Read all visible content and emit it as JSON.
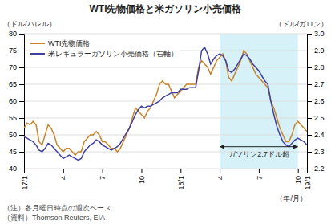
{
  "chart_data": {
    "type": "line",
    "title": "WTI先物価格と米ガソリン小売価格",
    "ylabel": "（ドル/バレル）",
    "y2label": "（ドル/ガロン）",
    "xlabel": "（年/月）",
    "notes": [
      "（注）各月曜日時点の週次ベース",
      "（資料）Thomson Reuters, EIA"
    ],
    "categories": [
      "17/1",
      null,
      null,
      null,
      null,
      null,
      null,
      null,
      null,
      null,
      null,
      null,
      null,
      "4",
      null,
      null,
      null,
      null,
      null,
      null,
      null,
      null,
      null,
      null,
      null,
      null,
      "7",
      null,
      null,
      null,
      null,
      null,
      null,
      null,
      null,
      null,
      null,
      null,
      null,
      "10",
      null,
      null,
      null,
      null,
      null,
      null,
      null,
      null,
      null,
      null,
      null,
      null,
      "18/1",
      null,
      null,
      null,
      null,
      null,
      null,
      null,
      null,
      null,
      null,
      null,
      null,
      "4",
      null,
      null,
      null,
      null,
      null,
      null,
      null,
      null,
      null,
      null,
      null,
      null,
      "7",
      null,
      null,
      null,
      null,
      null,
      null,
      null,
      null,
      null,
      null,
      null,
      null,
      "10",
      null,
      null,
      "19/1"
    ],
    "series": [
      {
        "name": "WTI先物価格",
        "color": "#c8842a",
        "values": [
          52,
          53.5,
          53,
          54,
          53,
          48,
          47,
          50,
          53,
          52,
          50,
          47,
          46,
          45,
          46,
          46,
          45,
          44,
          45,
          45,
          48,
          49,
          50,
          50,
          51,
          50,
          48,
          48,
          47,
          46,
          46,
          45,
          46,
          48,
          50,
          52,
          55,
          58,
          57,
          56,
          55,
          57,
          58,
          60,
          62,
          65,
          66,
          65,
          65,
          63,
          61,
          62,
          63,
          64,
          65,
          65,
          65,
          65,
          70,
          72,
          71,
          70,
          68,
          70,
          72,
          73,
          74,
          72,
          67,
          66,
          68,
          70,
          72,
          75,
          74,
          72,
          70,
          68,
          67,
          66,
          65,
          64,
          60,
          58,
          55,
          52,
          50,
          48,
          48,
          50,
          53,
          54,
          53,
          52,
          51
        ]
      },
      {
        "name": "米レギュラーガソリン小売価格（右軸）",
        "color": "#4040a0",
        "axis": "y2",
        "values": [
          2.39,
          2.38,
          2.37,
          2.36,
          2.34,
          2.31,
          2.3,
          2.32,
          2.35,
          2.34,
          2.32,
          2.3,
          2.28,
          2.26,
          2.27,
          2.28,
          2.27,
          2.26,
          2.25,
          2.26,
          2.3,
          2.32,
          2.34,
          2.35,
          2.37,
          2.36,
          2.34,
          2.33,
          2.32,
          2.31,
          2.32,
          2.33,
          2.35,
          2.38,
          2.41,
          2.44,
          2.48,
          2.52,
          2.55,
          2.57,
          2.56,
          2.57,
          2.57,
          2.58,
          2.59,
          2.6,
          2.62,
          2.63,
          2.64,
          2.65,
          2.65,
          2.65,
          2.67,
          2.67,
          2.67,
          2.68,
          2.68,
          2.68,
          2.78,
          2.9,
          2.92,
          2.88,
          2.82,
          2.85,
          2.87,
          2.88,
          2.87,
          2.84,
          2.78,
          2.77,
          2.79,
          2.82,
          2.85,
          2.88,
          2.87,
          2.85,
          2.82,
          2.8,
          2.78,
          2.75,
          2.72,
          2.7,
          2.6,
          2.52,
          2.45,
          2.4,
          2.36,
          2.34,
          2.33,
          2.35,
          2.37,
          2.38,
          2.37,
          2.36,
          2.34
        ]
      }
    ],
    "ylim": [
      40,
      80
    ],
    "yticks": [
      40,
      45,
      50,
      55,
      60,
      65,
      70,
      75,
      80
    ],
    "y2lim": [
      2.2,
      3.0
    ],
    "y2ticks": [
      2.2,
      2.3,
      2.4,
      2.5,
      2.6,
      2.7,
      2.8,
      2.9,
      {
        "value": 3.0,
        "label": "3.0"
      }
    ],
    "grid": true,
    "legend": "upper left",
    "annotations": [
      {
        "text": "ガソリン2.7ドル超",
        "start": 65,
        "end": 91,
        "y": 46.5
      }
    ]
  }
}
